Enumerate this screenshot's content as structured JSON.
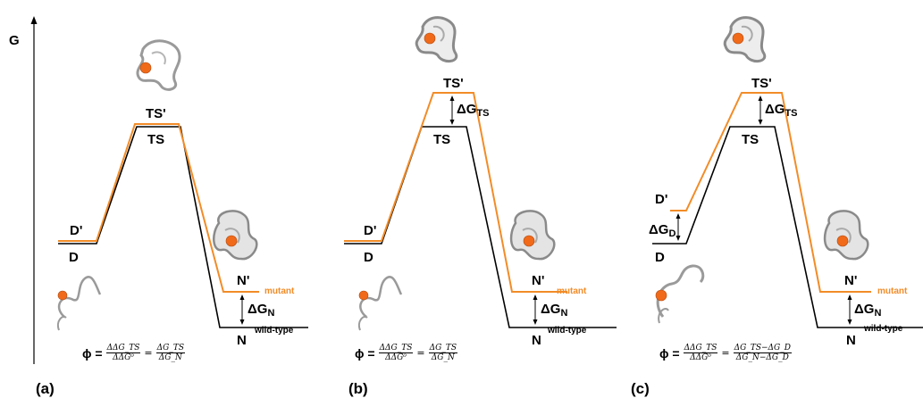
{
  "axis_label": "G",
  "colors": {
    "mutant": "#f28c28",
    "wild_type": "#000000",
    "protein": "#9a9a9a",
    "residue": "#f06a1a"
  },
  "panels": [
    {
      "id": "a",
      "panel_label": "(a)",
      "labels": {
        "d_prime": "D'",
        "d": "D",
        "ts_prime": "TS'",
        "ts": "TS",
        "n_prime": "N'",
        "n": "N",
        "mutant": "mutant",
        "wild_type": "wild-type"
      },
      "dg_ts": "",
      "dg_n": "ΔG",
      "dg_n_sub": "N",
      "dg_d": "",
      "dg_d_sub": "",
      "formula": {
        "phi": "ϕ =",
        "num1": "ΔΔG_TS",
        "den1": "ΔΔG⁰",
        "eq": "=",
        "num2": "ΔG_TS",
        "den2": "ΔG_N"
      }
    },
    {
      "id": "b",
      "panel_label": "(b)",
      "labels": {
        "d_prime": "D'",
        "d": "D",
        "ts_prime": "TS'",
        "ts": "TS",
        "n_prime": "N'",
        "n": "N",
        "mutant": "mutant",
        "wild_type": "wild-type"
      },
      "dg_ts": "ΔG",
      "dg_ts_sub": "TS",
      "dg_n": "ΔG",
      "dg_n_sub": "N",
      "dg_d": "",
      "dg_d_sub": "",
      "formula": {
        "phi": "ϕ =",
        "num1": "ΔΔG_TS",
        "den1": "ΔΔG⁰",
        "eq": "=",
        "num2": "ΔG_TS",
        "den2": "ΔG_N"
      }
    },
    {
      "id": "c",
      "panel_label": "(c)",
      "labels": {
        "d_prime": "D'",
        "d": "D",
        "ts_prime": "TS'",
        "ts": "TS",
        "n_prime": "N'",
        "n": "N",
        "mutant": "mutant",
        "wild_type": "wild-type"
      },
      "dg_ts": "ΔG",
      "dg_ts_sub": "TS",
      "dg_n": "ΔG",
      "dg_n_sub": "N",
      "dg_d": "ΔG",
      "dg_d_sub": "D",
      "formula": {
        "phi": "ϕ =",
        "num1": "ΔΔG_TS",
        "den1": "ΔΔG⁰",
        "eq": "=",
        "num2": "ΔG_TS−ΔG_D",
        "den2": "ΔG_N−ΔG_D"
      }
    }
  ]
}
